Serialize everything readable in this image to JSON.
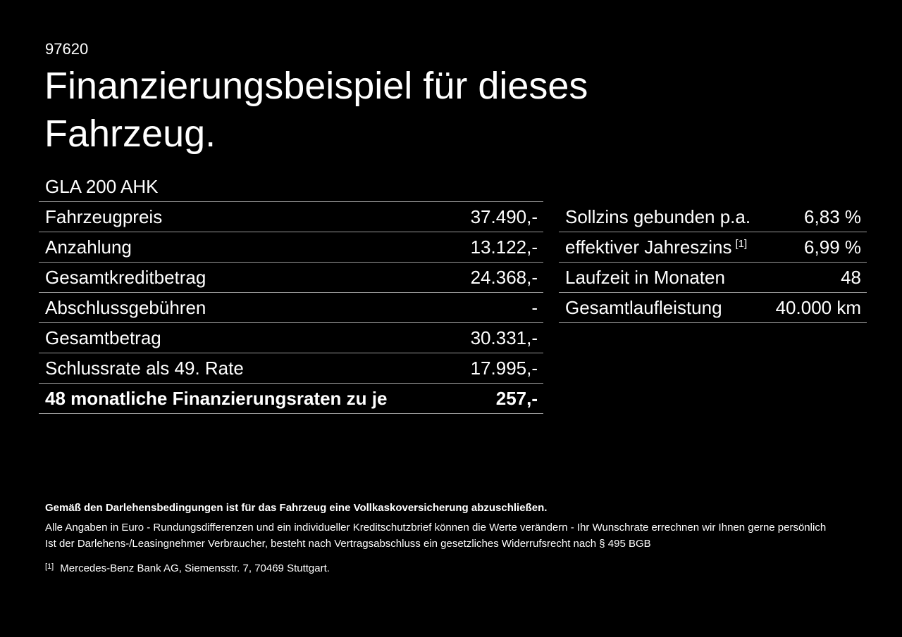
{
  "page": {
    "id_number": "97620",
    "title_line1": "Finanzierungsbeispiel für dieses",
    "title_line2": "Fahrzeug.",
    "vehicle_model": "GLA 200 AHK"
  },
  "finance_table": {
    "rows": [
      {
        "label": "Fahrzeugpreis",
        "value": "37.490,-"
      },
      {
        "label": "Anzahlung",
        "value": "13.122,-"
      },
      {
        "label": "Gesamtkreditbetrag",
        "value": "24.368,-"
      },
      {
        "label": "Abschlussgebühren",
        "value": "-"
      },
      {
        "label": "Gesamtbetrag",
        "value": "30.331,-"
      },
      {
        "label": "Schlussrate als 49. Rate",
        "value": "17.995,-"
      },
      {
        "label": "48 monatliche Finanzierungsraten zu je",
        "value": "257,-"
      }
    ]
  },
  "conditions_table": {
    "rows": [
      {
        "label": "Sollzins gebunden p.a.",
        "value": "6,83 %"
      },
      {
        "label": "effektiver Jahreszins",
        "label_sup": "[1]",
        "value": "6,99 %"
      },
      {
        "label": "Laufzeit in Monaten",
        "value": "48"
      },
      {
        "label": "Gesamtlaufleistung",
        "value": "40.000 km"
      }
    ]
  },
  "footer": {
    "insurance_note": "Gemäß den Darlehensbedingungen ist für das Fahrzeug eine Vollkaskoversicherung abzuschließen.",
    "disclaimer_line1": "Alle Angaben in Euro - Rundungsdifferenzen und ein individueller Kreditschutzbrief können die Werte verändern - Ihr Wunschrate errechnen wir Ihnen gerne persönlich",
    "disclaimer_line2": "Ist der Darlehens-/Leasingnehmer Verbraucher, besteht nach Vertragsabschluss ein gesetzliches Widerrufsrecht nach § 495 BGB",
    "footnote_marker": "[1]",
    "footnote_text": "Mercedes-Benz Bank AG, Siemensstr. 7, 70469 Stuttgart."
  },
  "colors": {
    "background": "#000000",
    "text": "#ffffff",
    "divider": "#999999"
  }
}
